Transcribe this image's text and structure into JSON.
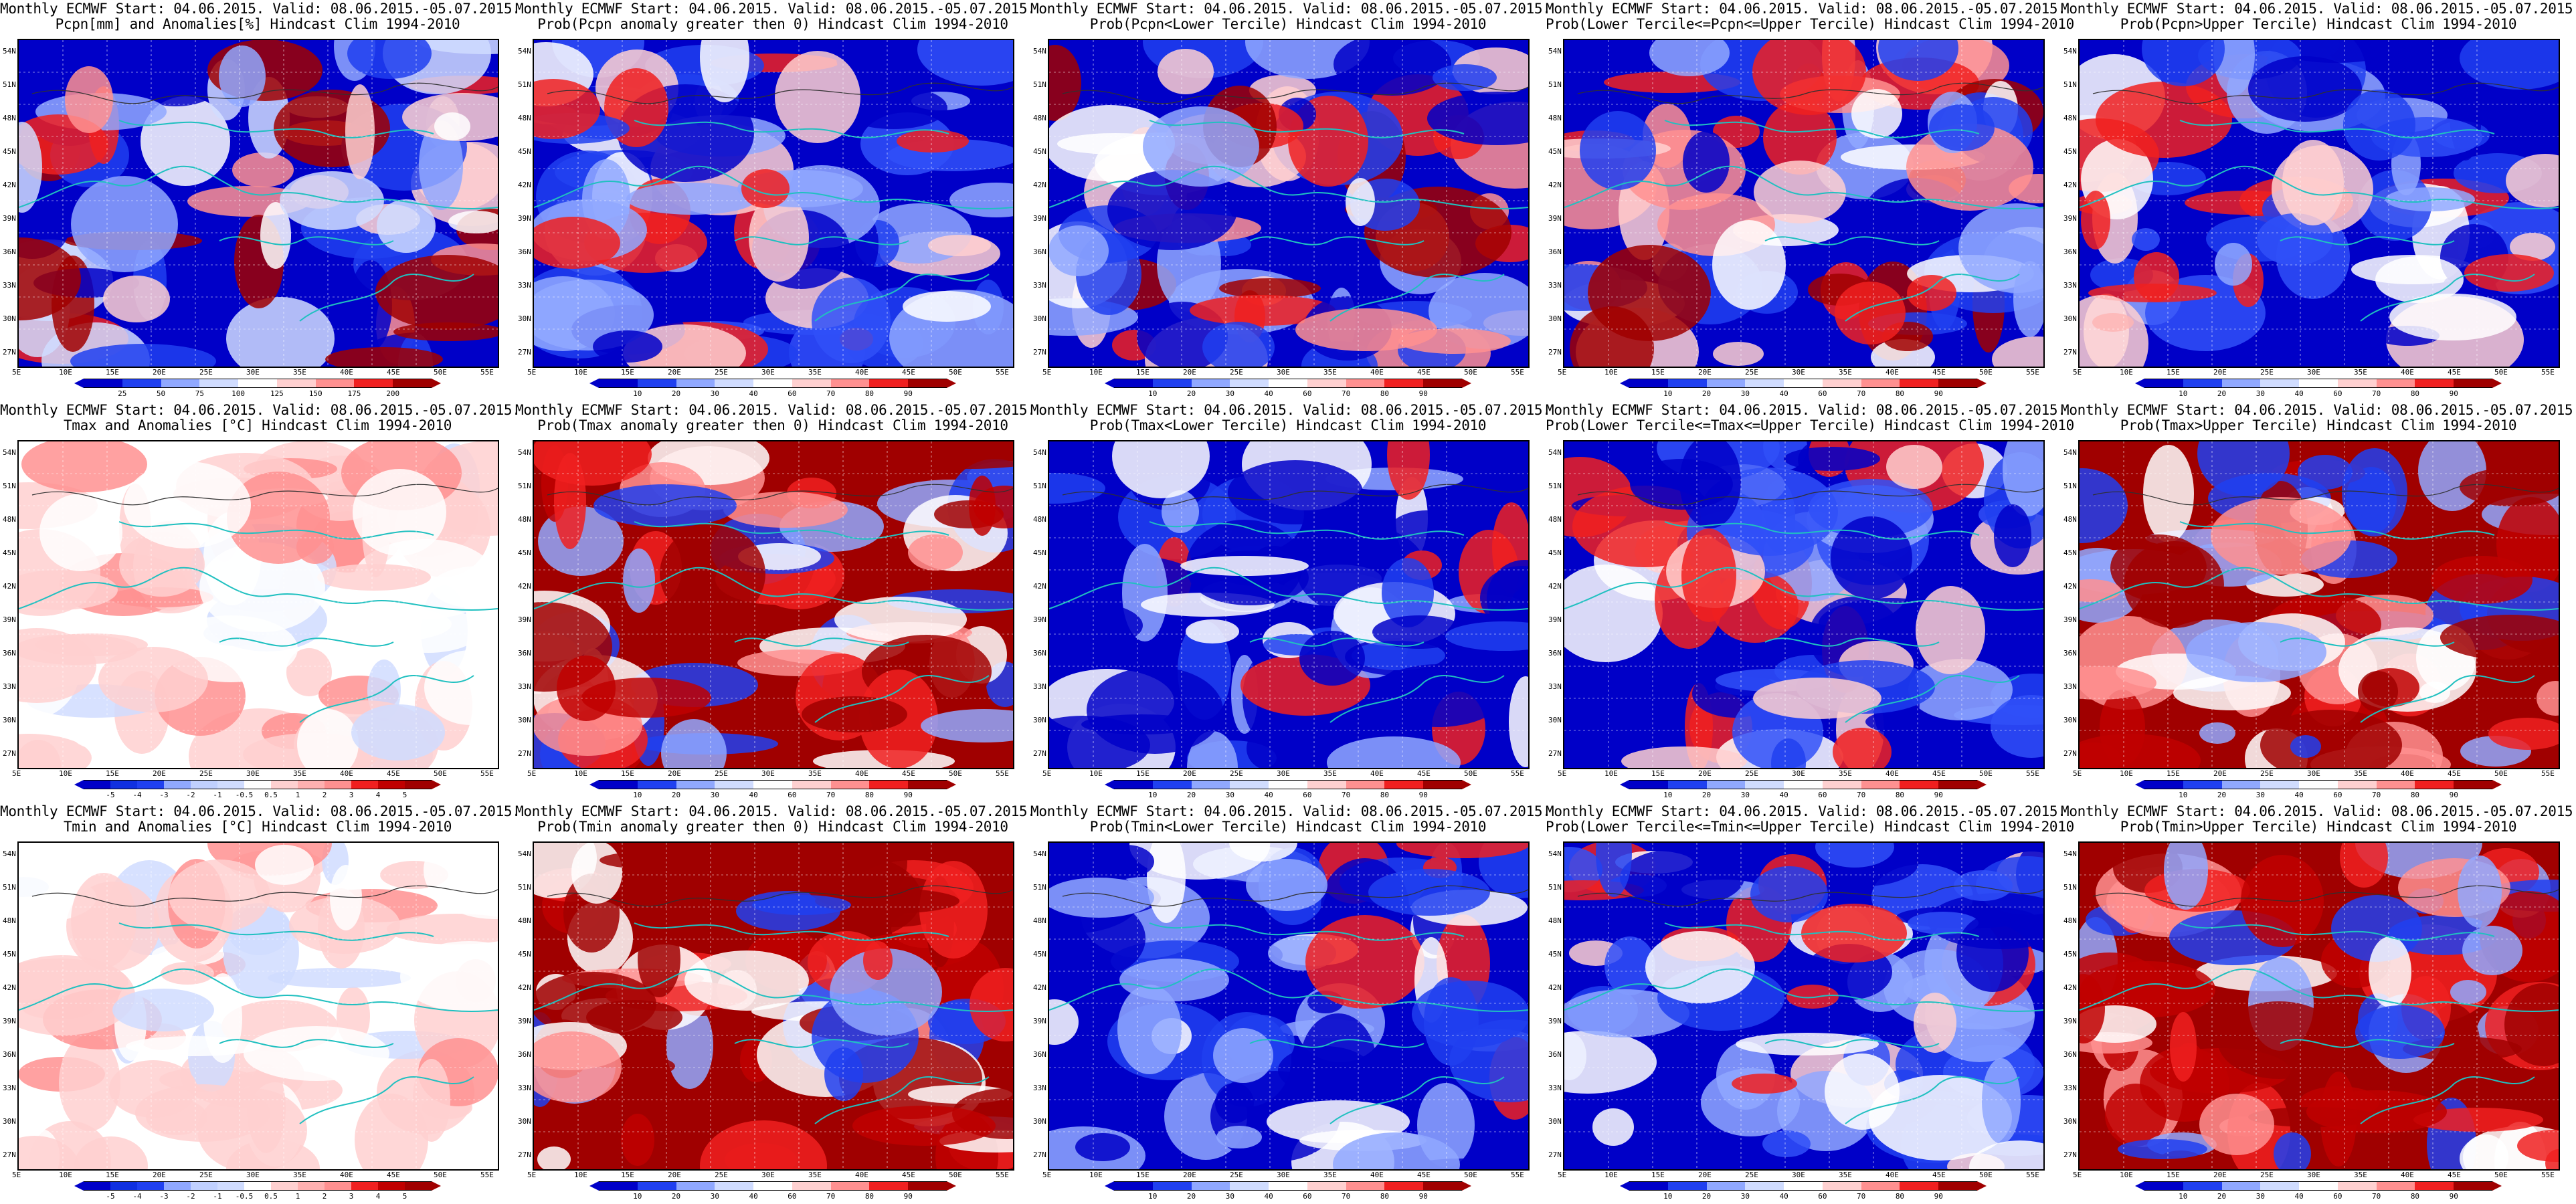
{
  "colors": {
    "deep_blue": "#0000c8",
    "blue": "#2040f0",
    "light_blue": "#90a8ff",
    "pale_blue": "#d0dcff",
    "white": "#ffffff",
    "pale_red": "#ffd0d0",
    "light_red": "#ff9090",
    "red": "#f02020",
    "dark_red": "#a00000",
    "coast": "#20c0c0",
    "contour": "#303030"
  },
  "axes": {
    "lat_labels": [
      "54N",
      "51N",
      "48N",
      "45N",
      "42N",
      "39N",
      "36N",
      "33N",
      "30N",
      "27N"
    ],
    "lon_labels": [
      "5E",
      "10E",
      "15E",
      "20E",
      "25E",
      "30E",
      "35E",
      "40E",
      "45E",
      "50E",
      "55E"
    ]
  },
  "panels": [
    {
      "title1": "Monthly ECMWF Start: 04.06.2015. Valid: 08.06.2015.-05.07.2015.",
      "title2": "Pcpn[mm] and Anomalies[%] Hindcast Clim 1994-2010",
      "scale": "pcpn",
      "style": "pcpn"
    },
    {
      "title1": "Monthly ECMWF Start: 04.06.2015. Valid: 08.06.2015.-05.07.2015.",
      "title2": "Prob(Pcpn anomaly greater then 0) Hindcast Clim 1994-2010",
      "scale": "prob",
      "style": "blue"
    },
    {
      "title1": "Monthly ECMWF Start: 04.06.2015. Valid: 08.06.2015.-05.07.2015.",
      "title2": "Prob(Pcpn<Lower Tercile) Hindcast Clim 1994-2010",
      "scale": "prob",
      "style": "mixed"
    },
    {
      "title1": "Monthly ECMWF Start: 04.06.2015. Valid: 08.06.2015.-05.07.2015.",
      "title2": "Prob(Lower Tercile<=Pcpn<=Upper Tercile) Hindcast Clim 1994-2010",
      "scale": "prob",
      "style": "mixed"
    },
    {
      "title1": "Monthly ECMWF Start: 04.06.2015. Valid: 08.06.2015.-05.07.2015.",
      "title2": "Prob(Pcpn>Upper Tercile) Hindcast Clim 1994-2010",
      "scale": "prob",
      "style": "blue"
    },
    {
      "title1": "Monthly ECMWF Start: 04.06.2015. Valid: 08.06.2015.-05.07.2015.",
      "title2": "Tmax and Anomalies [°C] Hindcast Clim 1994-2010",
      "scale": "temp",
      "style": "palered"
    },
    {
      "title1": "Monthly ECMWF Start: 04.06.2015. Valid: 08.06.2015.-05.07.2015.",
      "title2": "Prob(Tmax anomaly greater then 0) Hindcast Clim 1994-2010",
      "scale": "prob",
      "style": "red"
    },
    {
      "title1": "Monthly ECMWF Start: 04.06.2015. Valid: 08.06.2015.-05.07.2015.",
      "title2": "Prob(Tmax<Lower Tercile) Hindcast Clim 1994-2010",
      "scale": "prob",
      "style": "deepblue"
    },
    {
      "title1": "Monthly ECMWF Start: 04.06.2015. Valid: 08.06.2015.-05.07.2015.",
      "title2": "Prob(Lower Tercile<=Tmax<=Upper Tercile) Hindcast Clim 1994-2010",
      "scale": "prob",
      "style": "blue"
    },
    {
      "title1": "Monthly ECMWF Start: 04.06.2015. Valid: 08.06.2015.-05.07.2015.",
      "title2": "Prob(Tmax>Upper Tercile) Hindcast Clim 1994-2010",
      "scale": "prob",
      "style": "red"
    },
    {
      "title1": "Monthly ECMWF Start: 04.06.2015. Valid: 08.06.2015.-05.07.2015.",
      "title2": "Tmin and Anomalies [°C] Hindcast Clim 1994-2010",
      "scale": "temp",
      "style": "palered"
    },
    {
      "title1": "Monthly ECMWF Start: 04.06.2015. Valid: 08.06.2015.-05.07.2015.",
      "title2": "Prob(Tmin anomaly greater then 0) Hindcast Clim 1994-2010",
      "scale": "prob",
      "style": "red"
    },
    {
      "title1": "Monthly ECMWF Start: 04.06.2015. Valid: 08.06.2015.-05.07.2015.",
      "title2": "Prob(Tmin<Lower Tercile) Hindcast Clim 1994-2010",
      "scale": "prob",
      "style": "deepblue"
    },
    {
      "title1": "Monthly ECMWF Start: 04.06.2015. Valid: 08.06.2015.-05.07.2015.",
      "title2": "Prob(Lower Tercile<=Tmin<=Upper Tercile) Hindcast Clim 1994-2010",
      "scale": "prob",
      "style": "blue"
    },
    {
      "title1": "Monthly ECMWF Start: 04.06.2015. Valid: 08.06.2015.-05.07.2015.",
      "title2": "Prob(Tmin>Upper Tercile) Hindcast Clim 1994-2010",
      "scale": "prob",
      "style": "red"
    }
  ],
  "scales": {
    "pcpn": [
      "25",
      "50",
      "75",
      "100",
      "125",
      "150",
      "175",
      "200"
    ],
    "prob": [
      "10",
      "20",
      "30",
      "40",
      "60",
      "70",
      "80",
      "90"
    ],
    "temp": [
      "-5",
      "-4",
      "-3",
      "-2",
      "-1",
      "-0.5",
      "0.5",
      "1",
      "2",
      "3",
      "4",
      "5"
    ]
  }
}
